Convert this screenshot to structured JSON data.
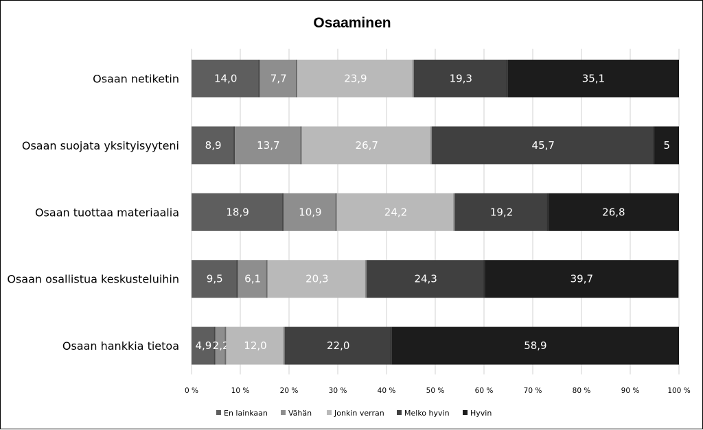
{
  "chart_data": {
    "type": "bar",
    "orientation": "horizontal",
    "stacked": true,
    "title": "Osaaminen",
    "categories": [
      "Osaan netiketin",
      "Osaan suojata yksityisyyteni",
      "Osaan tuottaa materiaalia",
      "Osaan osallistua keskusteluihin",
      "Osaan hankkia tietoa"
    ],
    "series": [
      {
        "name": "En lainkaan",
        "color": "#5e5e5e",
        "values": [
          14.0,
          8.9,
          18.9,
          9.5,
          4.9
        ],
        "labels": [
          "14,0",
          "8,9",
          "18,9",
          "9,5",
          "4,9"
        ]
      },
      {
        "name": "Vähän",
        "color": "#8e8e8e",
        "values": [
          7.7,
          13.7,
          10.9,
          6.1,
          2.2
        ],
        "labels": [
          "7,7",
          "13,7",
          "10,9",
          "6,1",
          "2,2"
        ]
      },
      {
        "name": "Jonkin verran",
        "color": "#b9b9b9",
        "values": [
          23.9,
          26.7,
          24.2,
          20.3,
          12.0
        ],
        "labels": [
          "23,9",
          "26,7",
          "24,2",
          "20,3",
          "12,0"
        ]
      },
      {
        "name": "Melko hyvin",
        "color": "#404040",
        "values": [
          19.3,
          45.7,
          19.2,
          24.3,
          22.0
        ],
        "labels": [
          "19,3",
          "45,7",
          "19,2",
          "24,3",
          "22,0"
        ]
      },
      {
        "name": "Hyvin",
        "color": "#1c1c1c",
        "values": [
          35.1,
          5,
          26.8,
          39.7,
          58.9
        ],
        "labels": [
          "35,1",
          "5",
          "26,8",
          "39,7",
          "58,9"
        ]
      }
    ],
    "xlim": [
      0,
      100
    ],
    "xticks": [
      "0 %",
      "10 %",
      "20 %",
      "30 %",
      "40 %",
      "50 %",
      "60 %",
      "70 %",
      "80 %",
      "90 %",
      "100 %"
    ],
    "grid": true,
    "legend": "bottom"
  }
}
